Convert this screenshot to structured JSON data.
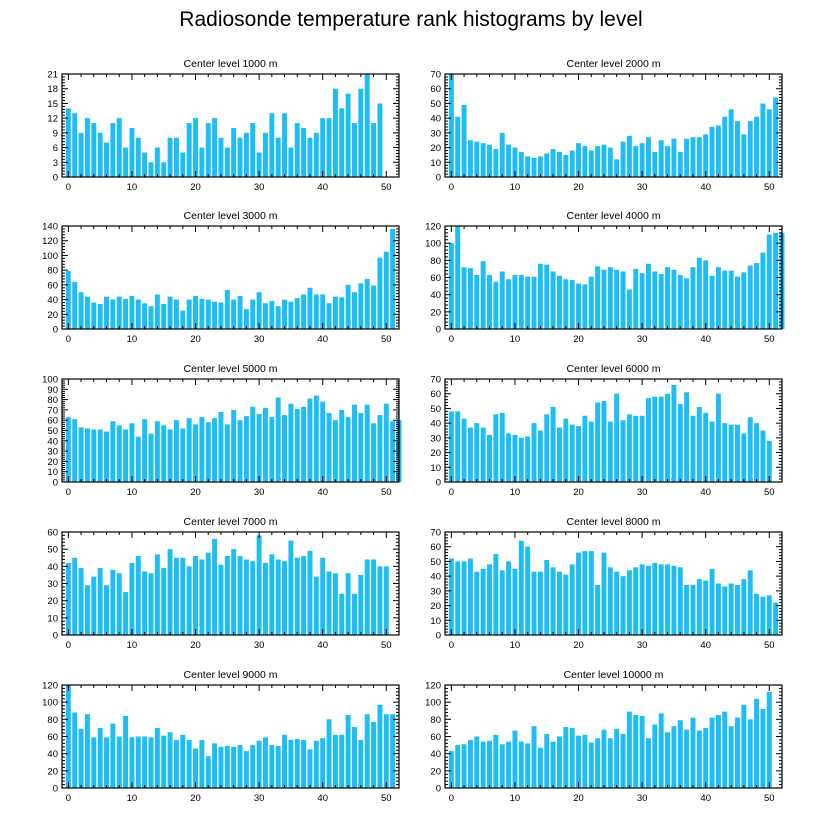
{
  "title": "Radiosonde temperature rank histograms by level",
  "bar_color": "#1EBEF5",
  "chart_data": [
    {
      "type": "bar",
      "title": "Center level 1000 m",
      "x_start": 0,
      "xlim": [
        -1,
        52
      ],
      "ylim": [
        0,
        21
      ],
      "xticks": [
        0,
        10,
        20,
        30,
        40,
        50
      ],
      "yticks": [
        0,
        3,
        6,
        9,
        12,
        15,
        18,
        21
      ],
      "values": [
        14,
        13,
        9,
        12,
        11,
        9,
        7,
        11,
        12,
        6,
        10,
        8,
        5,
        3,
        6,
        3,
        8,
        8,
        5,
        11,
        12,
        6,
        11,
        12,
        8,
        6,
        10,
        8,
        9,
        11,
        5,
        9,
        13,
        8,
        13,
        6,
        11,
        10,
        8,
        9,
        12,
        12,
        18,
        14,
        17,
        11,
        18,
        21,
        11,
        15
      ]
    },
    {
      "type": "bar",
      "title": "Center level 2000 m",
      "x_start": 0,
      "xlim": [
        -1,
        52
      ],
      "ylim": [
        0,
        70
      ],
      "xticks": [
        0,
        10,
        20,
        30,
        40,
        50
      ],
      "yticks": [
        0,
        10,
        20,
        30,
        40,
        50,
        60,
        70
      ],
      "values": [
        70,
        41,
        49,
        25,
        24,
        23,
        22,
        19,
        30,
        22,
        20,
        17,
        14,
        13,
        14,
        16,
        19,
        17,
        15,
        18,
        23,
        21,
        18,
        21,
        22,
        20,
        12,
        24,
        28,
        21,
        23,
        27,
        17,
        25,
        21,
        26,
        17,
        26,
        27,
        27,
        29,
        34,
        35,
        41,
        46,
        38,
        29,
        38,
        41,
        50,
        46,
        54
      ]
    },
    {
      "type": "bar",
      "title": "Center level 3000 m",
      "x_start": 0,
      "xlim": [
        -1,
        52
      ],
      "ylim": [
        0,
        140
      ],
      "xticks": [
        0,
        10,
        20,
        30,
        40,
        50
      ],
      "yticks": [
        0,
        20,
        40,
        60,
        80,
        100,
        120,
        140
      ],
      "values": [
        79,
        64,
        50,
        44,
        36,
        34,
        44,
        40,
        44,
        41,
        45,
        40,
        35,
        31,
        47,
        34,
        44,
        40,
        25,
        40,
        45,
        41,
        40,
        37,
        36,
        53,
        40,
        45,
        27,
        40,
        50,
        35,
        38,
        31,
        40,
        37,
        42,
        47,
        56,
        47,
        47,
        35,
        44,
        43,
        60,
        50,
        62,
        68,
        59,
        97,
        105,
        136
      ]
    },
    {
      "type": "bar",
      "title": "Center level 4000 m",
      "x_start": 0,
      "xlim": [
        -1,
        52
      ],
      "ylim": [
        0,
        120
      ],
      "xticks": [
        0,
        10,
        20,
        30,
        40,
        50
      ],
      "yticks": [
        0,
        20,
        40,
        60,
        80,
        100,
        120
      ],
      "values": [
        100,
        120,
        72,
        71,
        63,
        79,
        63,
        55,
        67,
        58,
        63,
        63,
        61,
        61,
        76,
        75,
        67,
        62,
        58,
        57,
        53,
        52,
        61,
        73,
        69,
        72,
        69,
        67,
        46,
        70,
        65,
        76,
        67,
        64,
        72,
        69,
        63,
        59,
        72,
        83,
        80,
        62,
        72,
        68,
        68,
        61,
        66,
        74,
        77,
        89,
        110,
        112,
        112
      ]
    },
    {
      "type": "bar",
      "title": "Center level 5000 m",
      "x_start": 0,
      "xlim": [
        -1,
        52
      ],
      "ylim": [
        0,
        100
      ],
      "xticks": [
        0,
        10,
        20,
        30,
        40,
        50
      ],
      "yticks": [
        0,
        10,
        20,
        30,
        40,
        50,
        60,
        70,
        80,
        90,
        100
      ],
      "values": [
        63,
        61,
        53,
        52,
        51,
        51,
        49,
        59,
        55,
        51,
        57,
        44,
        61,
        47,
        59,
        55,
        51,
        60,
        52,
        62,
        56,
        63,
        58,
        62,
        68,
        56,
        70,
        60,
        64,
        73,
        66,
        72,
        63,
        82,
        65,
        76,
        71,
        73,
        81,
        84,
        78,
        67,
        60,
        70,
        63,
        75,
        67,
        75,
        57,
        65,
        76,
        59,
        60
      ]
    },
    {
      "type": "bar",
      "title": "Center level 6000 m",
      "x_start": 0,
      "xlim": [
        -1,
        52
      ],
      "ylim": [
        0,
        70
      ],
      "xticks": [
        0,
        10,
        20,
        30,
        40,
        50
      ],
      "yticks": [
        0,
        10,
        20,
        30,
        40,
        50,
        60,
        70
      ],
      "values": [
        48,
        48,
        43,
        37,
        40,
        37,
        32,
        46,
        47,
        33,
        32,
        30,
        31,
        40,
        35,
        46,
        51,
        37,
        43,
        39,
        38,
        45,
        41,
        54,
        55,
        41,
        60,
        42,
        46,
        45,
        45,
        57,
        58,
        58,
        60,
        66,
        53,
        61,
        45,
        51,
        47,
        41,
        60,
        40,
        39,
        39,
        33,
        44,
        40,
        35,
        28
      ]
    },
    {
      "type": "bar",
      "title": "Center level 7000 m",
      "x_start": 0,
      "xlim": [
        -1,
        52
      ],
      "ylim": [
        0,
        60
      ],
      "xticks": [
        0,
        10,
        20,
        30,
        40,
        50
      ],
      "yticks": [
        0,
        10,
        20,
        30,
        40,
        50,
        60
      ],
      "values": [
        42,
        45,
        39,
        29,
        34,
        39,
        29,
        38,
        36,
        25,
        42,
        46,
        37,
        36,
        47,
        39,
        50,
        45,
        45,
        40,
        46,
        44,
        48,
        56,
        41,
        46,
        50,
        46,
        44,
        43,
        58,
        42,
        47,
        44,
        43,
        55,
        45,
        46,
        49,
        34,
        45,
        37,
        36,
        24,
        36,
        24,
        35,
        44,
        44,
        40,
        40
      ]
    },
    {
      "type": "bar",
      "title": "Center level 8000 m",
      "x_start": 0,
      "xlim": [
        -1,
        52
      ],
      "ylim": [
        0,
        70
      ],
      "xticks": [
        0,
        10,
        20,
        30,
        40,
        50
      ],
      "yticks": [
        0,
        10,
        20,
        30,
        40,
        50,
        60,
        70
      ],
      "values": [
        52,
        50,
        50,
        52,
        43,
        45,
        48,
        55,
        44,
        50,
        45,
        64,
        60,
        43,
        43,
        51,
        46,
        43,
        41,
        48,
        56,
        57,
        57,
        34,
        56,
        46,
        43,
        40,
        44,
        46,
        48,
        47,
        49,
        48,
        48,
        47,
        46,
        34,
        34,
        38,
        37,
        45,
        35,
        33,
        35,
        34,
        38,
        44,
        28,
        26,
        27,
        22
      ]
    },
    {
      "type": "bar",
      "title": "Center level 9000 m",
      "x_start": 0,
      "xlim": [
        -1,
        52
      ],
      "ylim": [
        0,
        120
      ],
      "xticks": [
        0,
        10,
        20,
        30,
        40,
        50
      ],
      "yticks": [
        0,
        20,
        40,
        60,
        80,
        100,
        120
      ],
      "values": [
        120,
        88,
        69,
        86,
        59,
        70,
        59,
        75,
        60,
        84,
        59,
        60,
        60,
        59,
        70,
        61,
        65,
        56,
        62,
        56,
        46,
        56,
        37,
        52,
        48,
        49,
        48,
        50,
        43,
        50,
        55,
        59,
        50,
        49,
        62,
        56,
        57,
        56,
        45,
        55,
        58,
        80,
        62,
        62,
        85,
        71,
        56,
        86,
        77,
        97,
        86,
        86
      ]
    },
    {
      "type": "bar",
      "title": "Center level 10000 m",
      "x_start": 0,
      "xlim": [
        -1,
        52
      ],
      "ylim": [
        0,
        120
      ],
      "xticks": [
        0,
        10,
        20,
        30,
        40,
        50
      ],
      "yticks": [
        0,
        20,
        40,
        60,
        80,
        100,
        120
      ],
      "values": [
        43,
        50,
        51,
        56,
        60,
        54,
        55,
        62,
        51,
        54,
        67,
        54,
        52,
        72,
        47,
        63,
        54,
        60,
        71,
        70,
        61,
        62,
        53,
        58,
        68,
        58,
        69,
        63,
        89,
        85,
        84,
        58,
        74,
        87,
        65,
        72,
        79,
        68,
        82,
        67,
        70,
        82,
        85,
        89,
        72,
        82,
        97,
        80,
        104,
        92,
        112
      ]
    }
  ]
}
